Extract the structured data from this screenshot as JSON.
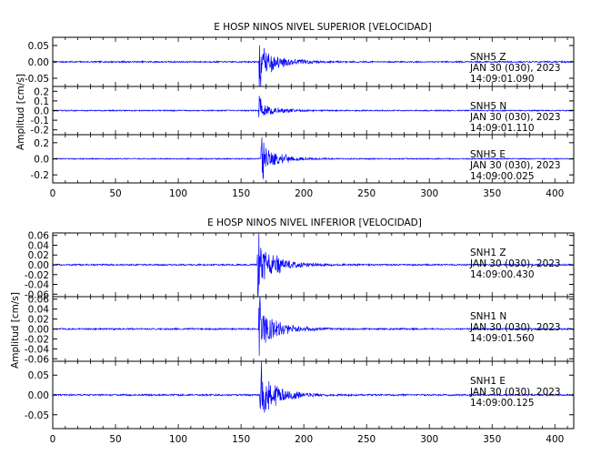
{
  "chart_data": [
    {
      "type": "line",
      "title": "E HOSP NINOS NIVEL SUPERIOR [VELOCIDAD]",
      "ylabel": "Amplitud [cm/s]",
      "xlim": [
        0,
        415
      ],
      "xticks": [
        "0",
        "50",
        "100",
        "150",
        "200",
        "250",
        "300",
        "350",
        "400"
      ],
      "panels": [
        {
          "station": "SNH5",
          "component": "Z",
          "date": "JAN 30 (030), 2023",
          "time": "14:09:01.090",
          "ylim": [
            -0.075,
            0.075
          ],
          "yticks": [
            "0.05",
            "0.00",
            "-0.05"
          ],
          "noise": 0.0022,
          "peak": 0.07,
          "onset": 164,
          "decay": 14,
          "color": "#0000ff"
        },
        {
          "station": "SNH5",
          "component": "N",
          "date": "JAN 30 (030), 2023",
          "time": "14:09:01.110",
          "ylim": [
            -0.25,
            0.25
          ],
          "yticks": [
            "0.2",
            "0.1",
            "0.0",
            "-0.1",
            "-0.2"
          ],
          "noise": 0.006,
          "peak": 0.11,
          "onset": 164,
          "decay": 13,
          "color": "#0000ff"
        },
        {
          "station": "SNH5",
          "component": "E",
          "date": "JAN 30 (030), 2023",
          "time": "14:09:00.025",
          "ylim": [
            -0.3,
            0.3
          ],
          "yticks": [
            "0.2",
            "0.0",
            "-0.2"
          ],
          "noise": 0.007,
          "peak": 0.26,
          "onset": 166,
          "decay": 12,
          "color": "#0000ff"
        }
      ]
    },
    {
      "type": "line",
      "title": "E HOSP NINOS NIVEL INFERIOR [VELOCIDAD]",
      "ylabel": "Amplitud [cm/s]",
      "xlim": [
        0,
        415
      ],
      "xticks": [
        "0",
        "50",
        "100",
        "150",
        "200",
        "250",
        "300",
        "350",
        "400"
      ],
      "panels": [
        {
          "station": "SNH1",
          "component": "Z",
          "date": "JAN 30 (030), 2023",
          "time": "14:09:00.430",
          "ylim": [
            -0.065,
            0.065
          ],
          "yticks": [
            "0.06",
            "0.04",
            "0.02",
            "0.00",
            "-0.02",
            "-0.04",
            "-0.06"
          ],
          "noise": 0.0015,
          "peak": 0.06,
          "onset": 163,
          "decay": 14,
          "color": "#0000ff"
        },
        {
          "station": "SNH1",
          "component": "N",
          "date": "JAN 30 (030), 2023",
          "time": "14:09:01.560",
          "ylim": [
            -0.065,
            0.065
          ],
          "yticks": [
            "0.06",
            "0.04",
            "0.02",
            "0.00",
            "-0.02",
            "-0.04",
            "-0.06"
          ],
          "noise": 0.0015,
          "peak": 0.058,
          "onset": 164,
          "decay": 14,
          "color": "#0000ff"
        },
        {
          "station": "SNH1",
          "component": "E",
          "date": "JAN 30 (030), 2023",
          "time": "14:09:00.125",
          "ylim": [
            -0.085,
            0.085
          ],
          "yticks": [
            "0.05",
            "0.00",
            "-0.05"
          ],
          "noise": 0.002,
          "peak": 0.08,
          "onset": 165,
          "decay": 13,
          "color": "#0000ff"
        }
      ]
    }
  ]
}
